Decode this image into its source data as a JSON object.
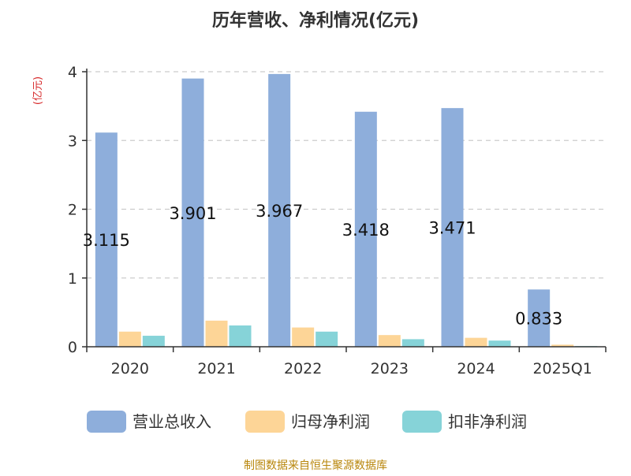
{
  "chart_data": {
    "type": "bar",
    "title": "历年营收、净利情况(亿元)",
    "unit_label": "(亿元)",
    "categories": [
      "2020",
      "2021",
      "2022",
      "2023",
      "2024",
      "2025Q1"
    ],
    "series": [
      {
        "name": "营业总收入",
        "color": "#8eaedb",
        "values": [
          3.115,
          3.901,
          3.967,
          3.418,
          3.471,
          0.833
        ]
      },
      {
        "name": "归母净利润",
        "color": "#fdd597",
        "values": [
          0.22,
          0.38,
          0.28,
          0.17,
          0.13,
          0.03
        ]
      },
      {
        "name": "扣非净利润",
        "color": "#86d3d8",
        "values": [
          0.16,
          0.31,
          0.22,
          0.11,
          0.09,
          0.01
        ]
      }
    ],
    "data_labels": [
      "3.115",
      "3.901",
      "3.967",
      "3.418",
      "3.471",
      "0.833"
    ],
    "y_ticks": [
      "0",
      "1",
      "2",
      "3",
      "4"
    ],
    "ylim": [
      0,
      4
    ],
    "grid": true,
    "legend_position": "bottom"
  },
  "source_note": "制图数据来自恒生聚源数据库"
}
